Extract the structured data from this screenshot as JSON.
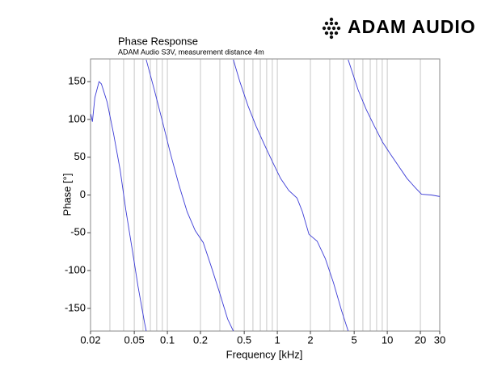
{
  "logo": "ADAM AUDIO",
  "chart_data": {
    "type": "line",
    "title": "Phase Response",
    "subtitle": "ADAM Audio S3V, measurement distance 4m",
    "x_label": "Frequency [kHz]",
    "y_label": "Phase [°]",
    "x_scale": "log",
    "xlim": [
      0.02,
      30
    ],
    "ylim": [
      -180,
      180
    ],
    "xticks": [
      0.02,
      0.05,
      0.1,
      0.2,
      0.5,
      1,
      2,
      5,
      10,
      20,
      30
    ],
    "yticks": [
      -150,
      -100,
      -50,
      0,
      50,
      100,
      150
    ],
    "xgrid": [
      0.02,
      0.03,
      0.04,
      0.05,
      0.06,
      0.07,
      0.08,
      0.09,
      0.1,
      0.2,
      0.3,
      0.4,
      0.5,
      0.6,
      0.7,
      0.8,
      0.9,
      1,
      2,
      3,
      4,
      5,
      6,
      7,
      8,
      9,
      10,
      20,
      30
    ],
    "series": [
      {
        "name": "Phase",
        "color": "#3b3bd6",
        "x": [
          0.0201,
          0.0208,
          0.0219,
          0.0239,
          0.0251,
          0.0283,
          0.0324,
          0.0372,
          0.0419,
          0.048,
          0.0541,
          0.062,
          0.0642,
          null,
          0.0642,
          0.0761,
          0.0903,
          0.107,
          0.127,
          0.151,
          0.179,
          0.212,
          0.251,
          0.298,
          0.353,
          0.398,
          null,
          0.398,
          0.456,
          0.541,
          0.641,
          0.761,
          0.903,
          1.07,
          1.27,
          1.51,
          1.69,
          1.94,
          2.3,
          2.73,
          3.24,
          3.84,
          4.41,
          null,
          4.41,
          5.43,
          6.44,
          7.64,
          9.06,
          10.7,
          12.7,
          15.1,
          17.9,
          20.5,
          25.2,
          30
        ],
        "values": [
          107,
          97,
          129,
          150,
          147,
          123,
          81,
          33,
          -20,
          -73,
          -121,
          -169,
          -180,
          null,
          179,
          139,
          97,
          54,
          14,
          -22,
          -47,
          -63,
          -95,
          -129,
          -164,
          -180,
          null,
          179,
          150,
          118,
          91,
          67,
          44,
          22,
          6,
          -4,
          -22,
          -52,
          -61,
          -84,
          -116,
          -153,
          -180,
          null,
          179,
          139,
          113,
          91,
          70,
          54,
          38,
          22,
          10,
          1,
          0,
          -2
        ]
      }
    ]
  }
}
